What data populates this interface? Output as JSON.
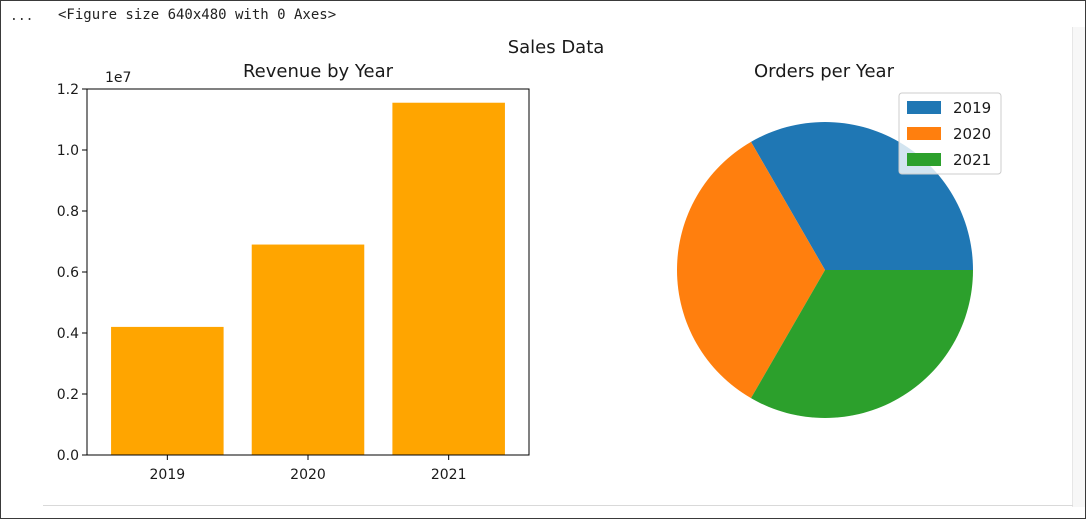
{
  "cell": {
    "prompt": "...",
    "output_text": "<Figure size 640x480 with 0 Axes>"
  },
  "figure": {
    "suptitle": "Sales Data"
  },
  "colors": {
    "bar": "#FFA500",
    "pie": [
      "#1f77b4",
      "#ff7f0e",
      "#2ca02c"
    ],
    "axis": "#000000",
    "text": "#1a1a1a"
  },
  "chart_data": [
    {
      "type": "bar",
      "title": "Revenue by Year",
      "categories": [
        "2019",
        "2020",
        "2021"
      ],
      "values": [
        4200000,
        6900000,
        11550000
      ],
      "xlabel": "",
      "ylabel": "",
      "ylim": [
        0,
        12000000
      ],
      "yticks": [
        "0.0",
        "0.2",
        "0.4",
        "0.6",
        "0.8",
        "1.0",
        "1.2"
      ],
      "ytick_values": [
        0,
        2000000,
        4000000,
        6000000,
        8000000,
        10000000,
        12000000
      ],
      "offset_label": "1e7",
      "grid": false
    },
    {
      "type": "pie",
      "title": "Orders per Year",
      "labels": [
        "2019",
        "2020",
        "2021"
      ],
      "values": [
        1,
        1,
        1
      ],
      "legend": {
        "entries": [
          "2019",
          "2020",
          "2021"
        ],
        "placement": "upper right"
      }
    }
  ]
}
